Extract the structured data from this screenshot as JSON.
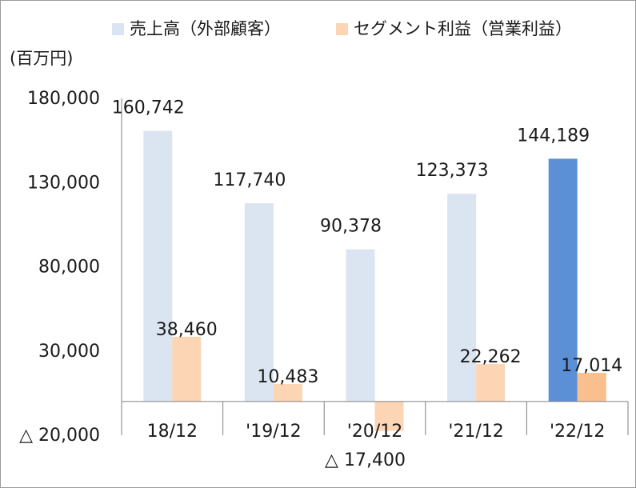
{
  "chart_data": {
    "type": "bar",
    "unit_label": "(百万円)",
    "categories": [
      "18/12",
      "'19/12",
      "'20/12",
      "'21/12",
      "'22/12"
    ],
    "series": [
      {
        "name": "売上高（外部顧客）",
        "color": "#dbe5f1",
        "highlight_color": "#5b8fd6",
        "values": [
          160742,
          117740,
          90378,
          123373,
          144189
        ],
        "labels": [
          "160,742",
          "117,740",
          "90,378",
          "123,373",
          "144,189"
        ]
      },
      {
        "name": "セグメント利益（営業利益）",
        "color": "#fcd5b4",
        "highlight_color": "#fabf8f",
        "values": [
          38460,
          10483,
          -17400,
          22262,
          17014
        ],
        "labels": [
          "38,460",
          "10,483",
          "△ 17,400",
          "22,262",
          "17,014"
        ]
      }
    ],
    "highlight_category_index": 4,
    "ylim": [
      -20000,
      180000
    ],
    "yticks": [
      -20000,
      30000,
      80000,
      130000,
      180000
    ],
    "ytick_labels": [
      "△ 20,000",
      "30,000",
      "80,000",
      "130,000",
      "180,000"
    ],
    "legend_position": "top",
    "grid": false
  }
}
